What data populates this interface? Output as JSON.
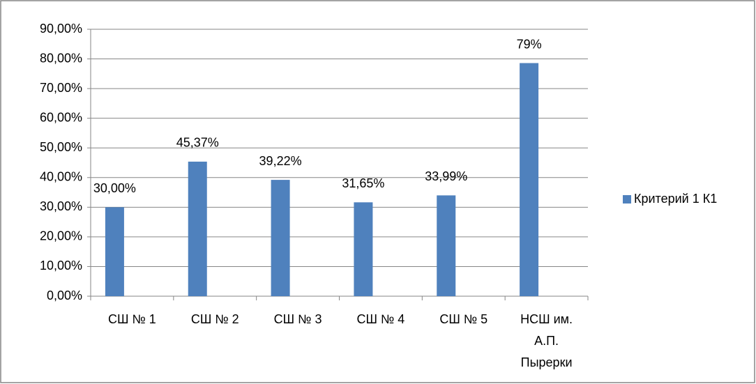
{
  "chart_data": {
    "type": "bar",
    "categories": [
      "СШ № 1",
      "СШ № 2",
      "СШ № 3",
      "СШ № 4",
      "СШ № 5",
      "НСШ им. А.П. Пырерки"
    ],
    "series": [
      {
        "name": "Критерий 1 К1",
        "color": "#4f81bd",
        "values": [
          30,
          45.37,
          39.22,
          31.65,
          33.99,
          78.6
        ],
        "value_labels": [
          "30,00%",
          "45,37%",
          "39,22%",
          "31,65%",
          "33,99%",
          "79%"
        ]
      }
    ],
    "ylim": [
      0,
      90
    ],
    "yticks": [
      {
        "value": 0,
        "label": "0,00%"
      },
      {
        "value": 10,
        "label": "10,00%"
      },
      {
        "value": 20,
        "label": "20,00%"
      },
      {
        "value": 30,
        "label": "30,00%"
      },
      {
        "value": 40,
        "label": "40,00%"
      },
      {
        "value": 50,
        "label": "50,00%"
      },
      {
        "value": 60,
        "label": "60,00%"
      },
      {
        "value": 70,
        "label": "70,00%"
      },
      {
        "value": 80,
        "label": "80,00%"
      },
      {
        "value": 90,
        "label": "90,00%"
      }
    ],
    "grid": true,
    "legend": "right"
  }
}
